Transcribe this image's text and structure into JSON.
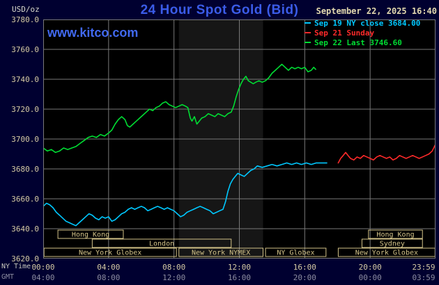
{
  "header": {
    "units_label": "USD/oz",
    "title": "24 Hour Spot Gold (Bid)",
    "datetime": "September 22, 2025 16:40",
    "watermark": "www.kitco.com"
  },
  "legend": [
    {
      "label": "Sep 19 NY close 3684.00",
      "color": "#00c8ff"
    },
    {
      "label": "Sep 21 Sunday",
      "color": "#ff2a2a"
    },
    {
      "label": "Sep 22 Last 3746.60",
      "color": "#00dd33"
    }
  ],
  "axes": {
    "x_ny_label": "NY Time",
    "x_gmt_label": "GMT",
    "y_ticks": [
      "3780.0",
      "3760.0",
      "3740.0",
      "3720.0",
      "3700.0",
      "3680.0",
      "3660.0",
      "3640.0",
      "3620.0"
    ],
    "x_ny_ticks": [
      "00:00",
      "04:00",
      "08:00",
      "12:00",
      "16:00",
      "20:00",
      "23:59"
    ],
    "x_gmt_ticks": [
      "04:00",
      "08:00",
      "12:00",
      "16:00",
      "20:00",
      "00:00",
      "03:59"
    ]
  },
  "chart_data": {
    "type": "line",
    "title": "24 Hour Spot Gold (Bid)",
    "x_unit": "hours, NY time",
    "x_range": [
      0,
      24
    ],
    "y_range": [
      3620,
      3780
    ],
    "y_tick_step": 20,
    "x_tick_hours": [
      0,
      4,
      8,
      12,
      16,
      20,
      23.983
    ],
    "grid": true,
    "legend_position": "top-right",
    "session_band": {
      "start": 8.3,
      "end": 13.45
    },
    "colors": {
      "background": "#000030",
      "plot_bg": "#000000",
      "grid": "#787878",
      "band": "#161616",
      "session_box": "#d2c288",
      "title_blue": "#3b5ce8",
      "watermark_blue": "#4169f0",
      "date_tan": "#e3d9af",
      "axis_tan": "#d6cba4",
      "gmt_gray": "#8c8ca0"
    },
    "series": [
      {
        "id": "sep19-ny-close",
        "name": "Sep 19 NY close",
        "color": "#00c8ff",
        "last_value": 3684.0,
        "points": [
          [
            0.0,
            3655
          ],
          [
            0.2,
            3657
          ],
          [
            0.4,
            3656
          ],
          [
            0.6,
            3654
          ],
          [
            0.8,
            3651
          ],
          [
            1.0,
            3649
          ],
          [
            1.2,
            3647
          ],
          [
            1.4,
            3645
          ],
          [
            1.6,
            3644
          ],
          [
            1.8,
            3643
          ],
          [
            2.0,
            3642
          ],
          [
            2.2,
            3644
          ],
          [
            2.4,
            3646
          ],
          [
            2.6,
            3648
          ],
          [
            2.8,
            3650
          ],
          [
            3.0,
            3649
          ],
          [
            3.2,
            3647
          ],
          [
            3.4,
            3646
          ],
          [
            3.6,
            3648
          ],
          [
            3.8,
            3647
          ],
          [
            4.0,
            3648
          ],
          [
            4.2,
            3645
          ],
          [
            4.4,
            3646
          ],
          [
            4.6,
            3648
          ],
          [
            4.8,
            3650
          ],
          [
            5.0,
            3651
          ],
          [
            5.2,
            3653
          ],
          [
            5.4,
            3654
          ],
          [
            5.6,
            3653
          ],
          [
            5.8,
            3654
          ],
          [
            6.0,
            3655
          ],
          [
            6.2,
            3654
          ],
          [
            6.4,
            3652
          ],
          [
            6.6,
            3653
          ],
          [
            6.8,
            3654
          ],
          [
            7.0,
            3655
          ],
          [
            7.2,
            3654
          ],
          [
            7.4,
            3653
          ],
          [
            7.6,
            3654
          ],
          [
            7.8,
            3653
          ],
          [
            8.0,
            3652
          ],
          [
            8.2,
            3650
          ],
          [
            8.4,
            3648
          ],
          [
            8.6,
            3649
          ],
          [
            8.8,
            3651
          ],
          [
            9.0,
            3652
          ],
          [
            9.2,
            3653
          ],
          [
            9.4,
            3654
          ],
          [
            9.6,
            3655
          ],
          [
            9.8,
            3654
          ],
          [
            10.0,
            3653
          ],
          [
            10.2,
            3652
          ],
          [
            10.4,
            3650
          ],
          [
            10.6,
            3651
          ],
          [
            10.8,
            3652
          ],
          [
            11.0,
            3653
          ],
          [
            11.15,
            3658
          ],
          [
            11.3,
            3665
          ],
          [
            11.45,
            3670
          ],
          [
            11.6,
            3673
          ],
          [
            11.75,
            3675
          ],
          [
            11.9,
            3677
          ],
          [
            12.1,
            3676
          ],
          [
            12.3,
            3675
          ],
          [
            12.5,
            3677
          ],
          [
            12.7,
            3679
          ],
          [
            12.9,
            3680
          ],
          [
            13.1,
            3682
          ],
          [
            13.4,
            3681
          ],
          [
            13.7,
            3682
          ],
          [
            14.0,
            3683
          ],
          [
            14.3,
            3682
          ],
          [
            14.6,
            3683
          ],
          [
            14.9,
            3684
          ],
          [
            15.2,
            3683
          ],
          [
            15.5,
            3684
          ],
          [
            15.8,
            3683
          ],
          [
            16.1,
            3684
          ],
          [
            16.4,
            3683
          ],
          [
            16.7,
            3684
          ],
          [
            17.0,
            3684
          ],
          [
            17.35,
            3684
          ]
        ]
      },
      {
        "id": "sep21-sunday",
        "name": "Sep 21 Sunday",
        "color": "#ff2a2a",
        "last_value": 3696,
        "points": [
          [
            18.05,
            3684
          ],
          [
            18.2,
            3687
          ],
          [
            18.35,
            3689
          ],
          [
            18.5,
            3691
          ],
          [
            18.65,
            3689
          ],
          [
            18.8,
            3687
          ],
          [
            19.0,
            3686
          ],
          [
            19.2,
            3688
          ],
          [
            19.4,
            3687
          ],
          [
            19.6,
            3689
          ],
          [
            19.8,
            3688
          ],
          [
            20.0,
            3687
          ],
          [
            20.2,
            3686
          ],
          [
            20.4,
            3688
          ],
          [
            20.6,
            3689
          ],
          [
            20.8,
            3688
          ],
          [
            21.0,
            3687
          ],
          [
            21.2,
            3688
          ],
          [
            21.4,
            3686
          ],
          [
            21.6,
            3687
          ],
          [
            21.8,
            3689
          ],
          [
            22.0,
            3688
          ],
          [
            22.2,
            3687
          ],
          [
            22.4,
            3688
          ],
          [
            22.6,
            3689
          ],
          [
            22.8,
            3688
          ],
          [
            23.0,
            3687
          ],
          [
            23.2,
            3688
          ],
          [
            23.4,
            3689
          ],
          [
            23.6,
            3690
          ],
          [
            23.8,
            3692
          ],
          [
            23.98,
            3696
          ]
        ]
      },
      {
        "id": "sep22-last",
        "name": "Sep 22",
        "color": "#00dd33",
        "last_value": 3746.6,
        "points": [
          [
            0.0,
            3694
          ],
          [
            0.25,
            3692
          ],
          [
            0.5,
            3693
          ],
          [
            0.75,
            3691
          ],
          [
            1.0,
            3692
          ],
          [
            1.25,
            3694
          ],
          [
            1.5,
            3693
          ],
          [
            1.75,
            3694
          ],
          [
            2.0,
            3695
          ],
          [
            2.25,
            3697
          ],
          [
            2.5,
            3699
          ],
          [
            2.75,
            3701
          ],
          [
            3.0,
            3702
          ],
          [
            3.25,
            3701
          ],
          [
            3.5,
            3703
          ],
          [
            3.75,
            3702
          ],
          [
            4.0,
            3704
          ],
          [
            4.2,
            3706
          ],
          [
            4.4,
            3710
          ],
          [
            4.6,
            3713
          ],
          [
            4.8,
            3715
          ],
          [
            5.0,
            3713
          ],
          [
            5.15,
            3709
          ],
          [
            5.3,
            3708
          ],
          [
            5.5,
            3710
          ],
          [
            5.7,
            3712
          ],
          [
            5.9,
            3714
          ],
          [
            6.1,
            3716
          ],
          [
            6.3,
            3718
          ],
          [
            6.5,
            3720
          ],
          [
            6.7,
            3719
          ],
          [
            6.9,
            3721
          ],
          [
            7.1,
            3722
          ],
          [
            7.3,
            3724
          ],
          [
            7.5,
            3725
          ],
          [
            7.7,
            3723
          ],
          [
            7.9,
            3722
          ],
          [
            8.1,
            3721
          ],
          [
            8.3,
            3722
          ],
          [
            8.5,
            3723
          ],
          [
            8.7,
            3722
          ],
          [
            8.85,
            3721
          ],
          [
            9.0,
            3714
          ],
          [
            9.1,
            3712
          ],
          [
            9.25,
            3715
          ],
          [
            9.4,
            3710
          ],
          [
            9.55,
            3712
          ],
          [
            9.7,
            3714
          ],
          [
            9.9,
            3715
          ],
          [
            10.1,
            3717
          ],
          [
            10.3,
            3716
          ],
          [
            10.5,
            3715
          ],
          [
            10.7,
            3717
          ],
          [
            10.9,
            3716
          ],
          [
            11.1,
            3715
          ],
          [
            11.3,
            3717
          ],
          [
            11.5,
            3718
          ],
          [
            11.65,
            3722
          ],
          [
            11.8,
            3728
          ],
          [
            11.95,
            3733
          ],
          [
            12.1,
            3737
          ],
          [
            12.25,
            3740
          ],
          [
            12.4,
            3742
          ],
          [
            12.55,
            3739
          ],
          [
            12.7,
            3738
          ],
          [
            12.85,
            3737
          ],
          [
            13.0,
            3738
          ],
          [
            13.2,
            3739
          ],
          [
            13.4,
            3738
          ],
          [
            13.6,
            3739
          ],
          [
            13.8,
            3741
          ],
          [
            14.0,
            3744
          ],
          [
            14.2,
            3746
          ],
          [
            14.4,
            3748
          ],
          [
            14.6,
            3750
          ],
          [
            14.8,
            3748
          ],
          [
            15.0,
            3746
          ],
          [
            15.2,
            3748
          ],
          [
            15.4,
            3747
          ],
          [
            15.6,
            3748
          ],
          [
            15.8,
            3747
          ],
          [
            16.0,
            3748
          ],
          [
            16.2,
            3745
          ],
          [
            16.4,
            3746
          ],
          [
            16.55,
            3748
          ],
          [
            16.67,
            3746.6
          ]
        ]
      }
    ],
    "sessions": [
      {
        "row": 0,
        "start": 0.9,
        "end": 4.9,
        "label": "Hong Kong"
      },
      {
        "row": 0,
        "start": 19.9,
        "end": 23.2,
        "label": "Hong Kong"
      },
      {
        "row": 1,
        "start": 3.0,
        "end": 11.5,
        "label": "London"
      },
      {
        "row": 1,
        "start": 19.5,
        "end": 23.2,
        "label": "Sydney"
      },
      {
        "row": 2,
        "start": 0.05,
        "end": 8.15,
        "label": "New York Globex"
      },
      {
        "row": 2,
        "start": 8.3,
        "end": 13.45,
        "label": "New York NYMEX"
      },
      {
        "row": 2,
        "start": 13.6,
        "end": 17.3,
        "label": "NY Globex"
      },
      {
        "row": 2,
        "start": 18.05,
        "end": 23.97,
        "label": "New York Globex"
      }
    ]
  }
}
